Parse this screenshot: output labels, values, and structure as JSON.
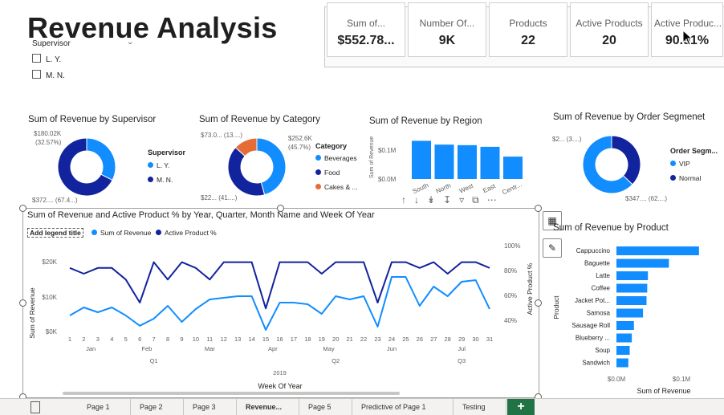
{
  "page": {
    "title": "Revenue Analysis"
  },
  "kpis": [
    {
      "label": "Sum of...",
      "value": "$552.78..."
    },
    {
      "label": "Number Of...",
      "value": "9K"
    },
    {
      "label": "Products",
      "value": "22"
    },
    {
      "label": "Active Products",
      "value": "20"
    },
    {
      "label": "Active Produc...",
      "value": "90.91%"
    }
  ],
  "slicer": {
    "title": "Supervisor",
    "options": [
      "L. Y.",
      "M. N."
    ]
  },
  "colors": {
    "primary": "#118dff",
    "dark": "#12239e",
    "orange": "#e66c37",
    "accent": "#217346"
  },
  "donut_supervisor": {
    "title": "Sum of Revenue by Supervisor",
    "label_top": "$180.02K",
    "label_top2": "(32.57%)",
    "label_bottom": "$372.... (67.4...)",
    "legend_title": "Supervisor",
    "legend": [
      "L. Y.",
      "M. N."
    ]
  },
  "donut_category": {
    "title": "Sum of Revenue by Category",
    "label_tl": "$73.0... (13....)",
    "label_r1": "$252.6K",
    "label_r2": "(45.7%)",
    "label_bl": "$22... (41....)",
    "legend_title": "Category",
    "legend": [
      "Beverages",
      "Food",
      "Cakes & ..."
    ]
  },
  "bar_region": {
    "title": "Sum of Revenue by Region",
    "ylabel": "Sum of Revenue",
    "yticks": [
      "$0.1M",
      "$0.0M"
    ],
    "xlabels": [
      "South",
      "North",
      "West",
      "East",
      "Centr..."
    ]
  },
  "donut_segment": {
    "title": "Sum of Revenue by Order Segmenet",
    "label_tl": "$2... (3....)",
    "label_bl": "$347.... (62....)",
    "legend_title": "Order Segm...",
    "legend": [
      "VIP",
      "Normal"
    ]
  },
  "line_chart": {
    "title": "Sum of Revenue and Active Product % by Year, Quarter, Month Name and Week Of Year",
    "legend_title": "Add legend title",
    "series_names": [
      "Sum of Revenue",
      "Active Product %"
    ],
    "ylabel_left": "Sum of Revenue",
    "ylabel_right": "Active Product %",
    "yticks_left": [
      "$20K",
      "$10K",
      "$0K"
    ],
    "yticks_right": [
      "100%",
      "80%",
      "60%",
      "40%"
    ],
    "xlabel": "Week Of Year",
    "months": [
      "Jan",
      "Feb",
      "Mar",
      "Apr",
      "May",
      "Jun",
      "Jul"
    ],
    "quarters": [
      "Q1",
      "Q2",
      "Q3"
    ],
    "year": "2019"
  },
  "bar_product": {
    "title": "Sum of Revenue by Product",
    "ylabel": "Product",
    "xlabel": "Sum of Revenue",
    "xticks": [
      "$0.0M",
      "$0.1M"
    ]
  },
  "tabs": [
    "Page 1",
    "Page 2",
    "Page 3",
    "Revenue...",
    "Page 5",
    "Predictive of Page 1",
    "Testing"
  ],
  "chart_data": [
    {
      "type": "pie",
      "title": "Sum of Revenue by Supervisor",
      "categories": [
        "L. Y.",
        "M. N."
      ],
      "values": [
        180020,
        372760
      ],
      "percent": [
        32.57,
        67.43
      ]
    },
    {
      "type": "pie",
      "title": "Sum of Revenue by Category",
      "categories": [
        "Beverages",
        "Food",
        "Cakes & ..."
      ],
      "values": [
        252600,
        227000,
        73000
      ],
      "percent": [
        45.7,
        41.1,
        13.2
      ]
    },
    {
      "type": "bar",
      "title": "Sum of Revenue by Region",
      "categories": [
        "South",
        "North",
        "West",
        "East",
        "Centr..."
      ],
      "values": [
        140000,
        126000,
        124000,
        118000,
        82000
      ],
      "ylim": [
        0,
        150000
      ],
      "ylabel": "Sum of Revenue"
    },
    {
      "type": "pie",
      "title": "Sum of Revenue by Order Segmenet",
      "categories": [
        "VIP",
        "Normal"
      ],
      "values": [
        205000,
        347000
      ],
      "percent": [
        37.1,
        62.9
      ]
    },
    {
      "type": "line",
      "title": "Sum of Revenue and Active Product % by Year, Quarter, Month Name and Week Of Year",
      "x": [
        1,
        2,
        3,
        4,
        5,
        6,
        7,
        8,
        9,
        10,
        11,
        12,
        13,
        14,
        15,
        16,
        17,
        18,
        19,
        20,
        21,
        22,
        23,
        24,
        25,
        26,
        27,
        28,
        29,
        30,
        31
      ],
      "xlabel": "Week Of Year",
      "series": [
        {
          "name": "Sum of Revenue",
          "axis": "left",
          "values": [
            5000,
            7500,
            6000,
            7500,
            5000,
            1800,
            4000,
            8000,
            3000,
            7000,
            10000,
            10500,
            11000,
            11000,
            500,
            9000,
            9000,
            8500,
            5500,
            11000,
            10000,
            11000,
            1500,
            17000,
            17000,
            8000,
            14000,
            11000,
            15500,
            16000,
            7000
          ]
        },
        {
          "name": "Active Product %",
          "axis": "right",
          "values": [
            85,
            80,
            85,
            85,
            75,
            55,
            90,
            75,
            90,
            85,
            75,
            90,
            90,
            90,
            50,
            90,
            90,
            90,
            80,
            90,
            90,
            90,
            55,
            90,
            90,
            85,
            90,
            80,
            90,
            90,
            85
          ]
        }
      ],
      "ylim": [
        0,
        27000
      ],
      "y2lim": [
        30,
        105
      ]
    },
    {
      "type": "bar",
      "title": "Sum of Revenue by Product",
      "orientation": "horizontal",
      "categories": [
        "Cappuccino",
        "Baguette",
        "Latte",
        "Coffee",
        "Jacket Pot...",
        "Samosa",
        "Sausage Roll",
        "Blueberry ...",
        "Soup",
        "Sandwich"
      ],
      "values": [
        118000,
        75000,
        45000,
        44000,
        43000,
        38000,
        25000,
        22000,
        19000,
        17000
      ],
      "xlim": [
        0,
        140000
      ],
      "xlabel": "Sum of Revenue",
      "ylabel": "Product"
    }
  ]
}
